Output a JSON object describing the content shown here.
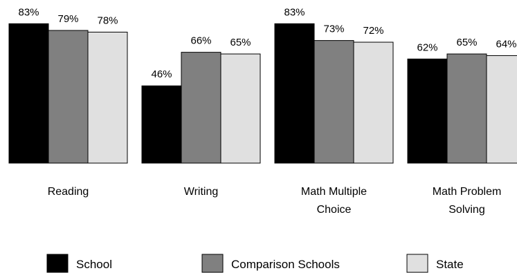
{
  "chart_data": {
    "type": "bar",
    "categories": [
      [
        "Reading"
      ],
      [
        "Writing"
      ],
      [
        "Math Multiple",
        "Choice"
      ],
      [
        "Math Problem",
        "Solving"
      ]
    ],
    "series": [
      {
        "name": "School",
        "color": "#000000",
        "values": [
          83,
          46,
          83,
          62
        ]
      },
      {
        "name": "Comparison Schools",
        "color": "#808080",
        "values": [
          79,
          66,
          73,
          65
        ]
      },
      {
        "name": "State",
        "color": "#e0e0e0",
        "values": [
          78,
          65,
          72,
          64
        ]
      }
    ],
    "value_suffix": "%",
    "grid": false,
    "legend_position": "bottom"
  }
}
